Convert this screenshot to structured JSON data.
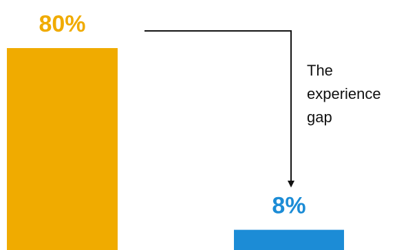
{
  "chart_data": {
    "type": "bar",
    "categories": [
      "",
      ""
    ],
    "values": [
      80,
      8
    ],
    "value_labels": [
      "80%",
      "8%"
    ],
    "colors": [
      "#F0AB00",
      "#1C8CD6"
    ],
    "ylim": [
      0,
      80
    ],
    "grid": false,
    "title": "",
    "xlabel": "",
    "ylabel": "",
    "annotation": {
      "lines": [
        "The",
        "experience",
        "gap"
      ]
    }
  }
}
